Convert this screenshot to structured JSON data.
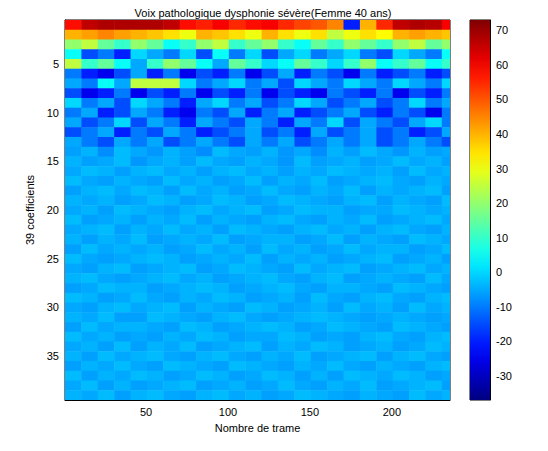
{
  "chart_data": {
    "type": "heatmap",
    "title": "Voix pathologique dysphonie sévère(Femme 40 ans)",
    "xlabel": "Nombre de trame",
    "ylabel": "39 coefficients",
    "x_bins": [
      0.5,
      10.5,
      20.5,
      30.5,
      40.5,
      50.5,
      60.5,
      70.5,
      80.5,
      90.5,
      100.5,
      110.5,
      120.5,
      130.5,
      140.5,
      150.5,
      160.5,
      170.5,
      180.5,
      190.5,
      200.5,
      210.5,
      220.5,
      230.5,
      235.5
    ],
    "y": [
      1,
      2,
      3,
      4,
      5,
      6,
      7,
      8,
      9,
      10,
      11,
      12,
      13,
      14,
      15,
      16,
      17,
      18,
      19,
      20,
      21,
      22,
      23,
      24,
      25,
      26,
      27,
      28,
      29,
      30,
      31,
      32,
      33,
      34,
      35,
      36,
      37,
      38,
      39
    ],
    "values": [
      [
        58,
        66,
        68,
        68,
        68,
        68,
        66,
        58,
        56,
        60,
        55,
        58,
        60,
        55,
        52,
        50,
        45,
        -20,
        40,
        55,
        66,
        68,
        67,
        60
      ],
      [
        40,
        42,
        45,
        42,
        40,
        38,
        35,
        30,
        40,
        38,
        35,
        30,
        40,
        35,
        30,
        35,
        25,
        30,
        35,
        32,
        40,
        42,
        40,
        38
      ],
      [
        20,
        25,
        15,
        10,
        20,
        15,
        5,
        10,
        20,
        25,
        10,
        15,
        20,
        10,
        5,
        15,
        10,
        20,
        15,
        10,
        20,
        25,
        15,
        20
      ],
      [
        5,
        -15,
        -10,
        -20,
        0,
        -5,
        -10,
        0,
        -15,
        5,
        -10,
        0,
        -15,
        -5,
        0,
        -10,
        -5,
        0,
        -10,
        -15,
        0,
        -5,
        -10,
        5
      ],
      [
        25,
        10,
        15,
        5,
        -5,
        10,
        20,
        15,
        5,
        -5,
        15,
        10,
        0,
        5,
        15,
        10,
        0,
        10,
        20,
        5,
        10,
        15,
        5,
        10
      ],
      [
        -10,
        -20,
        -25,
        -15,
        -5,
        -20,
        -10,
        -25,
        -15,
        -20,
        -10,
        -25,
        -15,
        -5,
        -20,
        -10,
        -15,
        -25,
        -10,
        -20,
        -15,
        -10,
        -20,
        -15
      ],
      [
        -5,
        -10,
        5,
        -5,
        25,
        25,
        25,
        0,
        -10,
        -5,
        0,
        -10,
        -5,
        -15,
        0,
        -5,
        -10,
        0,
        -5,
        -10,
        0,
        -5,
        -10,
        0
      ],
      [
        -15,
        -25,
        -20,
        -10,
        -25,
        -15,
        -20,
        -10,
        -25,
        -15,
        -20,
        -10,
        -25,
        -15,
        -20,
        -25,
        -10,
        -15,
        -20,
        -10,
        -25,
        -15,
        -20,
        -10
      ],
      [
        0,
        -10,
        -5,
        -15,
        0,
        -5,
        -10,
        -20,
        -5,
        0,
        -10,
        -5,
        -15,
        -10,
        0,
        -5,
        -15,
        -10,
        -5,
        -15,
        -10,
        0,
        -10,
        -5
      ],
      [
        -10,
        -5,
        -20,
        -15,
        -5,
        -10,
        -20,
        -25,
        -10,
        -15,
        -5,
        -20,
        -10,
        -5,
        -20,
        -15,
        -10,
        -5,
        -15,
        -20,
        -10,
        -15,
        -25,
        -10
      ],
      [
        -5,
        -15,
        -10,
        0,
        -15,
        -5,
        -10,
        -20,
        -5,
        -10,
        -15,
        -5,
        -10,
        -20,
        -5,
        -10,
        0,
        -15,
        -5,
        -10,
        -15,
        -5,
        0,
        -10
      ],
      [
        -15,
        -10,
        -5,
        -20,
        -10,
        -15,
        -5,
        -10,
        -20,
        -15,
        -10,
        -5,
        -15,
        -10,
        -20,
        -5,
        -15,
        -10,
        -5,
        -15,
        -10,
        -20,
        -15,
        -5
      ],
      [
        -5,
        -10,
        -15,
        -5,
        -10,
        -5,
        -15,
        -10,
        -5,
        -10,
        -15,
        -5,
        -10,
        -5,
        -15,
        -10,
        -5,
        -10,
        -5,
        -15,
        -10,
        -5,
        -10,
        -15
      ],
      [
        -6,
        -4,
        -8,
        -3,
        -5,
        -7,
        -4,
        -6,
        -8,
        -3,
        -5,
        -6,
        -4,
        -7,
        -5,
        -8,
        -4,
        -6,
        -3,
        -5,
        -7,
        -4,
        -6,
        -5
      ],
      [
        -4,
        -6,
        -5,
        -3,
        -7,
        -5,
        -4,
        -6,
        -3,
        -5,
        -6,
        -4,
        -5,
        -7,
        -3,
        -6,
        -5,
        -4,
        -6,
        -5,
        -3,
        -5,
        -4,
        -6
      ],
      [
        -5,
        -3,
        -4,
        -6,
        -4,
        -3,
        -5,
        -4,
        -6,
        -4,
        -3,
        -5,
        -4,
        -6,
        -4,
        -5,
        -3,
        -4,
        -5,
        -4,
        -6,
        -3,
        -5,
        -4
      ],
      [
        -3,
        -5,
        -6,
        -4,
        -5,
        -6,
        -3,
        -5,
        -4,
        -6,
        -5,
        -3,
        -6,
        -4,
        -5,
        -3,
        -6,
        -5,
        -4,
        -3,
        -5,
        -6,
        -4,
        -5
      ],
      [
        -6,
        -4,
        -3,
        -5,
        -3,
        -4,
        -6,
        -3,
        -5,
        -4,
        -6,
        -5,
        -3,
        -5,
        -6,
        -4,
        -5,
        -3,
        -6,
        -4,
        -5,
        -4,
        -3,
        -6
      ],
      [
        -4,
        -5,
        -4,
        -6,
        -5,
        -3,
        -4,
        -6,
        -5,
        -3,
        -4,
        -6,
        -5,
        -3,
        -4,
        -5,
        -6,
        -4,
        -3,
        -6,
        -4,
        -5,
        -6,
        -3
      ],
      [
        -5,
        -4,
        -6,
        -3,
        -4,
        -5,
        -6,
        -4,
        -3,
        -5,
        -4,
        -3,
        -6,
        -5,
        -3,
        -4,
        -4,
        -6,
        -5,
        -5,
        -3,
        -4,
        -5,
        -4
      ],
      [
        -3,
        -6,
        -5,
        -4,
        -6,
        -4,
        -5,
        -3,
        -6,
        -4,
        -5,
        -6,
        -4,
        -3,
        -5,
        -6,
        -4,
        -5,
        -3,
        -6,
        -5,
        -4,
        -3,
        -5
      ],
      [
        -5,
        -4,
        -3,
        -6,
        -4,
        -5,
        -3,
        -5,
        -4,
        -6,
        -3,
        -4,
        -5,
        -6,
        -4,
        -3,
        -5,
        -4,
        -6,
        -4,
        -3,
        -5,
        -6,
        -4
      ],
      [
        -4,
        -6,
        -4,
        -5,
        -3,
        -6,
        -5,
        -4,
        -5,
        -3,
        -6,
        -5,
        -4,
        -4,
        -6,
        -5,
        -3,
        -6,
        -4,
        -5,
        -6,
        -3,
        -4,
        -5
      ],
      [
        -6,
        -3,
        -5,
        -4,
        -5,
        -4,
        -6,
        -5,
        -3,
        -5,
        -4,
        -6,
        -3,
        -5,
        -4,
        -6,
        -5,
        -3,
        -5,
        -4,
        -4,
        -6,
        -5,
        -3
      ],
      [
        -3,
        -5,
        -6,
        -5,
        -4,
        -3,
        -4,
        -6,
        -5,
        -4,
        -5,
        -3,
        -6,
        -4,
        -5,
        -4,
        -6,
        -5,
        -4,
        -3,
        -6,
        -5,
        -4,
        -6
      ],
      [
        -5,
        -6,
        -4,
        -3,
        -6,
        -5,
        -4,
        -3,
        -6,
        -5,
        -3,
        -4,
        -5,
        -6,
        -3,
        -5,
        -4,
        -3,
        -6,
        -5,
        -4,
        -3,
        -5,
        -4
      ],
      [
        -4,
        -3,
        -5,
        -6,
        -5,
        -4,
        -3,
        -5,
        -4,
        -6,
        -5,
        -4,
        -3,
        -5,
        -6,
        -4,
        -3,
        -6,
        -5,
        -4,
        -5,
        -6,
        -3,
        -5
      ],
      [
        -6,
        -5,
        -3,
        -4,
        -4,
        -6,
        -5,
        -4,
        -3,
        -4,
        -6,
        -5,
        -4,
        -3,
        -5,
        -6,
        -4,
        -4,
        -5,
        -6,
        -3,
        -4,
        -5,
        -6
      ],
      [
        -3,
        -4,
        -6,
        -5,
        -3,
        -5,
        -6,
        -4,
        -5,
        -3,
        -4,
        -6,
        -5,
        -4,
        -6,
        -3,
        -5,
        -6,
        -4,
        -3,
        -5,
        -6,
        -4,
        -3
      ],
      [
        -5,
        -6,
        -4,
        -3,
        -5,
        -4,
        -3,
        -6,
        -4,
        -5,
        -6,
        -3,
        -4,
        -6,
        -5,
        -4,
        -6,
        -3,
        -5,
        -4,
        -6,
        -3,
        -5,
        -4
      ],
      [
        -4,
        -5,
        -3,
        -6,
        -6,
        -3,
        -4,
        -5,
        -6,
        -4,
        -3,
        -5,
        -6,
        -5,
        -4,
        -3,
        -4,
        -5,
        -6,
        -5,
        -4,
        -5,
        -6,
        -5
      ],
      [
        -6,
        -3,
        -5,
        -4,
        -4,
        -5,
        -6,
        -3,
        -4,
        -6,
        -5,
        -4,
        -3,
        -4,
        -6,
        -5,
        -3,
        -4,
        -5,
        -6,
        -3,
        -4,
        -5,
        -6
      ],
      [
        -3,
        -5,
        -4,
        -6,
        -5,
        -6,
        -4,
        -5,
        -3,
        -4,
        -6,
        -5,
        -5,
        -3,
        -4,
        -6,
        -5,
        -6,
        -4,
        -3,
        -5,
        -6,
        -4,
        -3
      ],
      [
        -5,
        -4,
        -6,
        -3,
        -6,
        -4,
        -5,
        -3,
        -6,
        -5,
        -4,
        -3,
        -6,
        -4,
        -5,
        -3,
        -4,
        -6,
        -5,
        -4,
        -6,
        -5,
        -3,
        -4
      ],
      [
        -4,
        -6,
        -3,
        -5,
        -4,
        -3,
        -5,
        -6,
        -4,
        -3,
        -5,
        -6,
        -4,
        -5,
        -3,
        -6,
        -5,
        -4,
        -3,
        -6,
        -4,
        -3,
        -5,
        -6
      ],
      [
        -6,
        -4,
        -5,
        -3,
        -5,
        -6,
        -3,
        -4,
        -5,
        -6,
        -3,
        -4,
        -5,
        -6,
        -4,
        -5,
        -3,
        -5,
        -6,
        -4,
        -5,
        -6,
        -4,
        -3
      ],
      [
        -3,
        -6,
        -4,
        -5,
        -3,
        -4,
        -6,
        -5,
        -3,
        -4,
        -6,
        -5,
        -3,
        -4,
        -6,
        -4,
        -6,
        -3,
        -4,
        -5,
        -3,
        -4,
        -6,
        -5
      ],
      [
        -5,
        -3,
        -6,
        -4,
        -6,
        -5,
        -4,
        -3,
        -6,
        -5,
        -4,
        -6,
        -5,
        -3,
        -5,
        -6,
        -4,
        -5,
        -3,
        -6,
        -5,
        -4,
        -3,
        -6
      ],
      [
        -4,
        -5,
        -3,
        -6,
        -4,
        -3,
        -5,
        -6,
        -4,
        -3,
        -5,
        -4,
        -6,
        -5,
        -3,
        -4,
        -5,
        -6,
        -4,
        -5,
        -6,
        -3,
        -5,
        -4
      ]
    ],
    "xlim": [
      0.5,
      235.5
    ],
    "xticks": [
      50,
      100,
      150,
      200
    ],
    "ylim": [
      0.5,
      39.5
    ],
    "yticks": [
      5,
      10,
      15,
      20,
      25,
      30,
      35
    ],
    "color_range": [
      -37,
      73
    ],
    "color_ticks": [
      -30,
      -20,
      -10,
      0,
      10,
      20,
      30,
      40,
      50,
      60,
      70
    ]
  }
}
